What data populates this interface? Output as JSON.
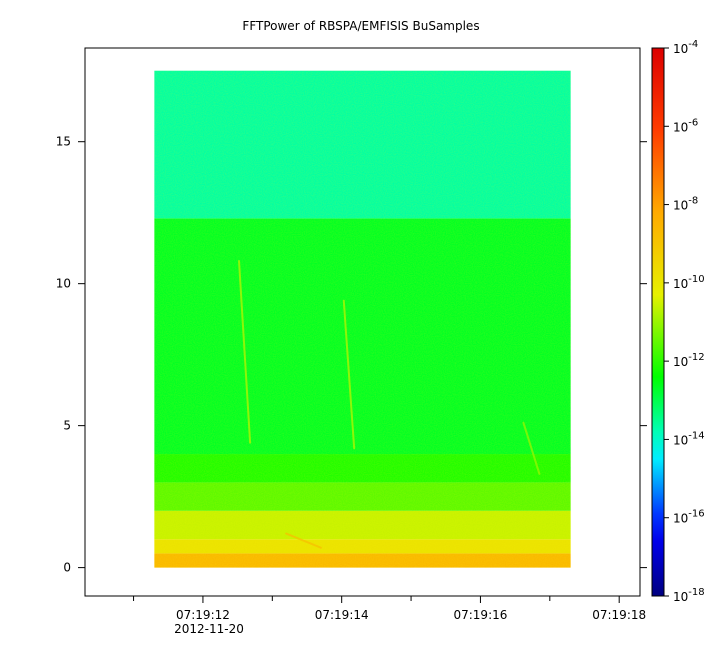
{
  "chart_data": {
    "type": "heatmap",
    "title": "FFTPower of RBSPA/EMFISIS  BuSamples",
    "xlabel": "",
    "ylabel": "",
    "x_ticks": [
      {
        "value": 12,
        "label": "07:19:12"
      },
      {
        "value": 14,
        "label": "07:19:14"
      },
      {
        "value": 16,
        "label": "07:19:16"
      },
      {
        "value": 18,
        "label": "07:19:18"
      }
    ],
    "x_minor_ticks": [
      11,
      13,
      15,
      17
    ],
    "x_date_label": "2012-11-20",
    "xlim": [
      10.3,
      18.3
    ],
    "y_ticks": [
      0,
      5,
      10,
      15
    ],
    "ylim": [
      -1,
      18.3
    ],
    "data_extent": {
      "x": [
        11.3,
        17.3
      ],
      "y": [
        0,
        17.5
      ]
    },
    "colorbar": {
      "scale": "log",
      "range": [
        1e-18,
        0.0001
      ],
      "tick_labels": [
        {
          "base": "10",
          "exp": "-4"
        },
        {
          "base": "10",
          "exp": "-6"
        },
        {
          "base": "10",
          "exp": "-8"
        },
        {
          "base": "10",
          "exp": "-10"
        },
        {
          "base": "10",
          "exp": "-12"
        },
        {
          "base": "10",
          "exp": "-14"
        },
        {
          "base": "10",
          "exp": "-16"
        },
        {
          "base": "10",
          "exp": "-18"
        }
      ]
    },
    "bands": [
      {
        "y": [
          0.0,
          0.5
        ],
        "level": 0.67
      },
      {
        "y": [
          0.5,
          1.0
        ],
        "level": 0.58
      },
      {
        "y": [
          1.0,
          2.0
        ],
        "level": 0.53
      },
      {
        "y": [
          2.0,
          3.0
        ],
        "level": 0.46
      },
      {
        "y": [
          3.0,
          4.0
        ],
        "level": 0.42
      },
      {
        "y": [
          4.0,
          12.3
        ],
        "level": 0.38
      },
      {
        "y": [
          12.3,
          17.5
        ],
        "level": 0.31
      }
    ],
    "features": [
      {
        "name": "",
        "x": [
          12.52,
          12.68
        ],
        "y": [
          10.8,
          4.4
        ],
        "level": 0.52
      },
      {
        "name": "",
        "x": [
          14.03,
          14.18
        ],
        "y": [
          9.4,
          4.2
        ],
        "level": 0.52
      },
      {
        "name": "",
        "x": [
          16.62,
          16.85
        ],
        "y": [
          5.1,
          3.3
        ],
        "level": 0.5
      },
      {
        "name": "",
        "x": [
          13.2,
          13.7
        ],
        "y": [
          1.2,
          0.7
        ],
        "level": 0.65
      }
    ]
  }
}
